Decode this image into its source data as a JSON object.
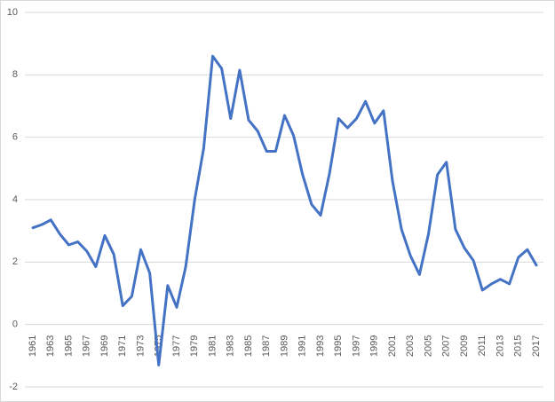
{
  "chart_data": {
    "type": "line",
    "categories": [
      "1961",
      null,
      "1963",
      null,
      "1965",
      null,
      "1967",
      null,
      "1969",
      null,
      "1971",
      null,
      "1973",
      null,
      "1975",
      null,
      "1977",
      null,
      "1979",
      null,
      "1981",
      null,
      "1983",
      null,
      "1985",
      null,
      "1987",
      null,
      "1989",
      null,
      "1991",
      null,
      "1993",
      null,
      "1995",
      null,
      "1997",
      null,
      "1999",
      null,
      "2001",
      null,
      "2003",
      null,
      "2005",
      null,
      "2007",
      null,
      "2009",
      null,
      "2011",
      null,
      "2013",
      null,
      "2015",
      null,
      "2017"
    ],
    "values": [
      3.1,
      3.2,
      3.35,
      2.9,
      2.55,
      2.65,
      2.35,
      1.85,
      2.85,
      2.25,
      0.6,
      0.9,
      2.4,
      1.65,
      -1.3,
      1.25,
      0.55,
      1.85,
      4.0,
      5.65,
      8.6,
      8.2,
      6.6,
      8.15,
      6.55,
      6.2,
      5.55,
      5.55,
      6.7,
      6.05,
      4.8,
      3.85,
      3.5,
      4.85,
      6.6,
      6.3,
      6.6,
      7.15,
      6.45,
      6.85,
      4.6,
      3.05,
      2.2,
      1.6,
      2.9,
      4.8,
      5.2,
      3.05,
      2.45,
      2.05,
      1.1,
      1.3,
      1.45,
      1.3,
      2.15,
      2.4,
      1.9
    ],
    "color": "#4472c4",
    "ylim": [
      -2,
      10
    ],
    "yticks": [
      -2,
      0,
      2,
      4,
      6,
      8,
      10
    ],
    "grid": true
  }
}
